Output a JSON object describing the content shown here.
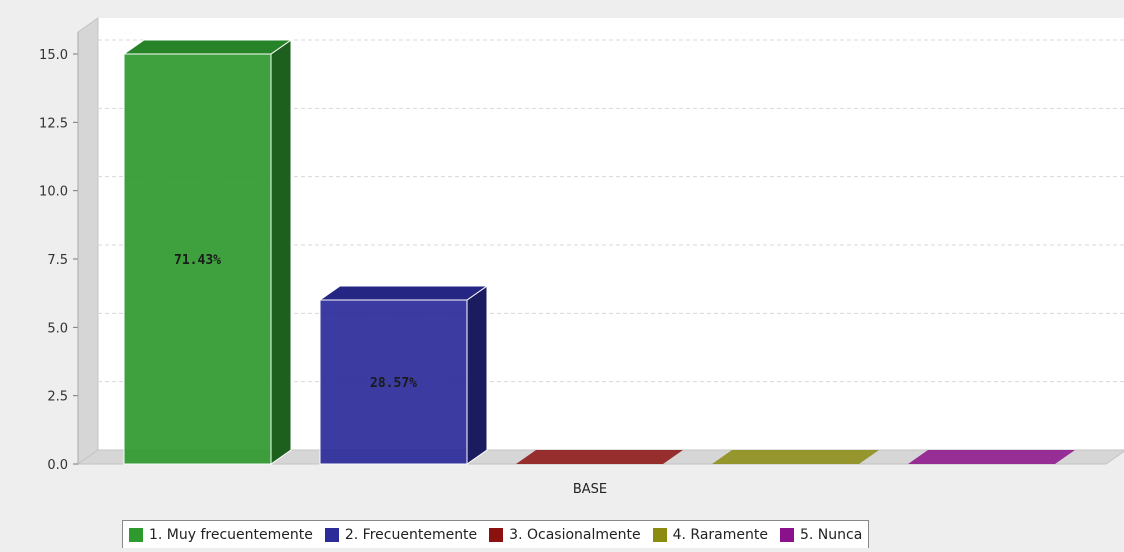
{
  "chart_data": {
    "type": "bar",
    "categories": [
      "BASE"
    ],
    "series": [
      {
        "name": "1. Muy frecuentemente",
        "values": [
          15
        ],
        "label": "71.43%",
        "color": "#2e9a2e"
      },
      {
        "name": "2. Frecuentemente",
        "values": [
          6
        ],
        "label": "28.57%",
        "color": "#2b2b9a"
      },
      {
        "name": "3. Ocasionalmente",
        "values": [
          0
        ],
        "label": "",
        "color": "#8b1010"
      },
      {
        "name": "4. Raramente",
        "values": [
          0
        ],
        "label": "",
        "color": "#8b8b10"
      },
      {
        "name": "5. Nunca",
        "values": [
          0
        ],
        "label": "",
        "color": "#8b108b"
      }
    ],
    "yticks": [
      "0.0",
      "2.5",
      "5.0",
      "7.5",
      "10.0",
      "12.5",
      "15.0"
    ],
    "ylim": [
      0,
      15
    ],
    "grid": true,
    "style": "3d",
    "legend_position": "bottom"
  }
}
